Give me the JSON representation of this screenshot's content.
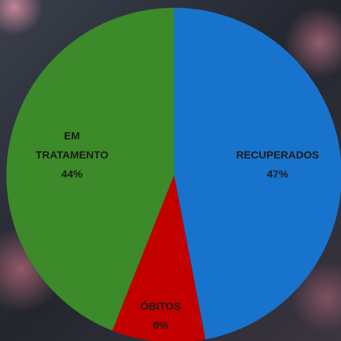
{
  "chart_data": {
    "type": "pie",
    "categories": [
      "RECUPERADOS",
      "ÓBITOS",
      "EM TRATAMENTO"
    ],
    "values": [
      47,
      9,
      44
    ],
    "value_labels": [
      "47%",
      "9%",
      "44%"
    ],
    "colors": [
      "#1873cc",
      "#c20000",
      "#3c8a29"
    ]
  }
}
